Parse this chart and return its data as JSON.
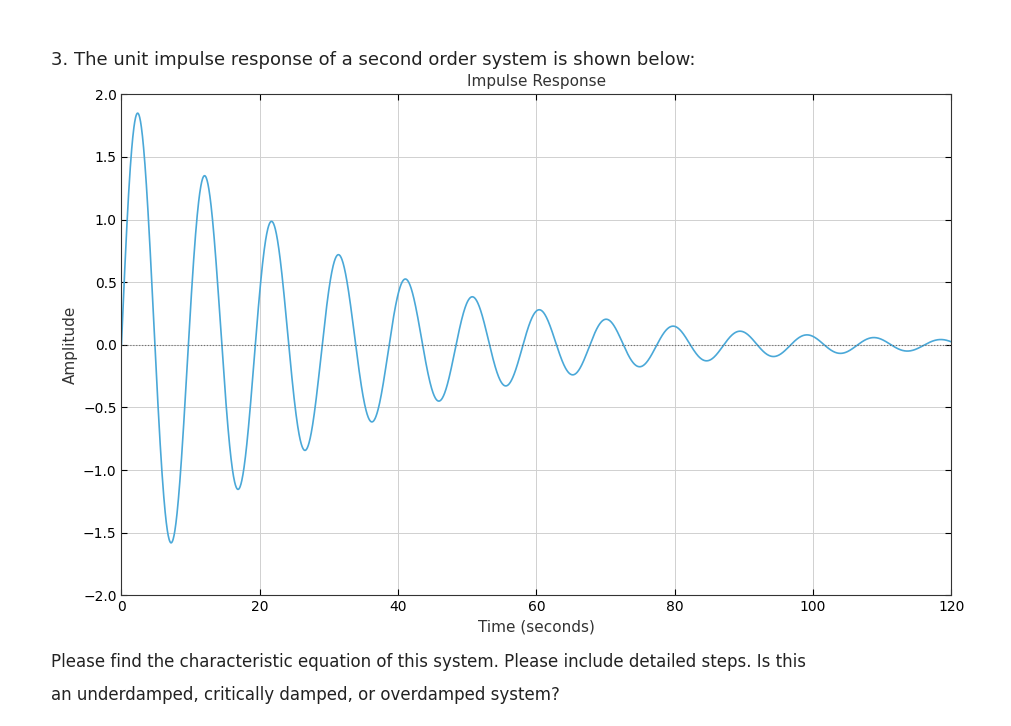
{
  "title": "Impulse Response",
  "xlabel": "Time (seconds)",
  "ylabel": "Amplitude",
  "xlim": [
    0,
    120
  ],
  "ylim": [
    -2,
    2
  ],
  "xticks": [
    0,
    20,
    40,
    60,
    80,
    100,
    120
  ],
  "yticks": [
    -2,
    -1.5,
    -1,
    -0.5,
    0,
    0.5,
    1,
    1.5,
    2
  ],
  "line_color": "#4aa8d8",
  "zero_line_color": "#555555",
  "grid_color": "#d0d0d0",
  "background_color": "#ffffff",
  "fig_bg_color": "#ffffff",
  "title_fontsize": 11,
  "label_fontsize": 11,
  "tick_fontsize": 10,
  "line_width": 1.2,
  "zeta": 0.05,
  "wn": 0.65,
  "t_start": 0,
  "t_end": 120,
  "num_points": 3000,
  "top_text": "3. The unit impulse response of a second order system is shown below:",
  "bottom_text1": "Please find the characteristic equation of this system. Please include detailed steps. Is this",
  "bottom_text2": "an underdamped, critically damped, or overdamped system?"
}
